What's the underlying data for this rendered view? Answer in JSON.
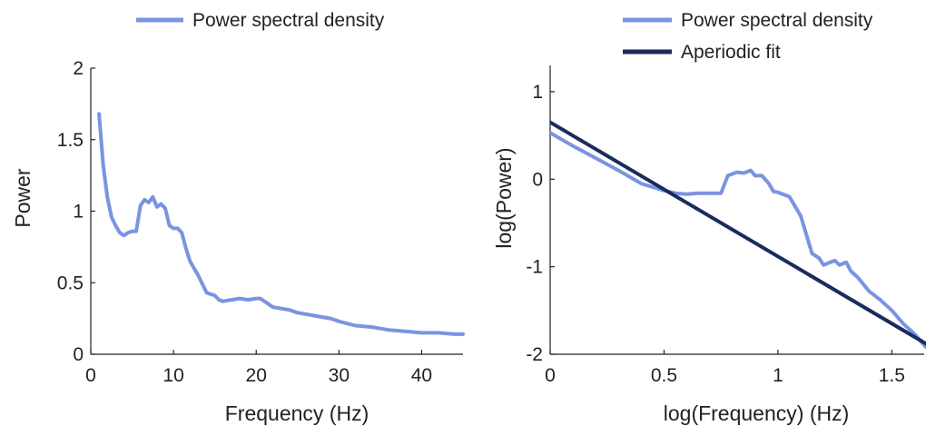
{
  "chart_data": [
    {
      "type": "line",
      "title": "",
      "xlabel": "Frequency (Hz)",
      "ylabel": "Power",
      "xlim": [
        0,
        45
      ],
      "ylim": [
        0,
        2
      ],
      "xticks": [
        0,
        10,
        20,
        30,
        40
      ],
      "xtick_labels": [
        "0",
        "10",
        "20",
        "30",
        "40"
      ],
      "yticks": [
        0,
        0.5,
        1,
        1.5,
        2
      ],
      "ytick_labels": [
        "0",
        "0.5",
        "1",
        "1.5",
        "2"
      ],
      "grid": false,
      "legend": "top",
      "series": [
        {
          "name": "Power spectral density",
          "color": "#7b93e0",
          "x": [
            1,
            1.5,
            2,
            2.5,
            3,
            3.5,
            4,
            4.5,
            5,
            5.5,
            6,
            6.5,
            7,
            7.5,
            8,
            8.5,
            9,
            9.5,
            10,
            10.5,
            11,
            11.5,
            12,
            13,
            14,
            15,
            15.5,
            16,
            17,
            18,
            19,
            20,
            20.5,
            21,
            22,
            23,
            24,
            25,
            26,
            27,
            28,
            29,
            30,
            32,
            34,
            36,
            38,
            40,
            42,
            44,
            45
          ],
          "y": [
            1.68,
            1.32,
            1.1,
            0.96,
            0.9,
            0.85,
            0.83,
            0.85,
            0.86,
            0.86,
            1.04,
            1.08,
            1.06,
            1.1,
            1.03,
            1.05,
            1.02,
            0.9,
            0.88,
            0.88,
            0.85,
            0.74,
            0.65,
            0.55,
            0.43,
            0.41,
            0.38,
            0.37,
            0.38,
            0.39,
            0.38,
            0.39,
            0.39,
            0.37,
            0.33,
            0.32,
            0.31,
            0.29,
            0.28,
            0.27,
            0.26,
            0.25,
            0.23,
            0.2,
            0.19,
            0.17,
            0.16,
            0.15,
            0.15,
            0.14,
            0.14
          ]
        }
      ]
    },
    {
      "type": "line",
      "title": "",
      "xlabel": "log(Frequency) (Hz)",
      "ylabel": "log(Power)",
      "xlim": [
        0,
        1.65
      ],
      "ylim": [
        -2,
        1.3
      ],
      "xticks": [
        0,
        0.5,
        1,
        1.5
      ],
      "xtick_labels": [
        "0",
        "0.5",
        "1",
        "1.5"
      ],
      "yticks": [
        -2,
        -1,
        0,
        1
      ],
      "ytick_labels": [
        "-2",
        "-1",
        "0",
        "1"
      ],
      "grid": false,
      "legend": "top-right",
      "series": [
        {
          "name": "Power spectral density",
          "color": "#7b93e0",
          "x": [
            0,
            0.1,
            0.2,
            0.3,
            0.4,
            0.5,
            0.55,
            0.6,
            0.65,
            0.7,
            0.75,
            0.78,
            0.82,
            0.85,
            0.88,
            0.9,
            0.93,
            0.96,
            0.98,
            1.0,
            1.05,
            1.1,
            1.15,
            1.18,
            1.2,
            1.22,
            1.25,
            1.27,
            1.3,
            1.32,
            1.35,
            1.4,
            1.45,
            1.5,
            1.55,
            1.6,
            1.65
          ],
          "y": [
            0.53,
            0.38,
            0.24,
            0.1,
            -0.05,
            -0.13,
            -0.16,
            -0.17,
            -0.16,
            -0.16,
            -0.16,
            0.04,
            0.08,
            0.07,
            0.1,
            0.04,
            0.04,
            -0.05,
            -0.14,
            -0.15,
            -0.2,
            -0.42,
            -0.85,
            -0.9,
            -0.98,
            -0.96,
            -0.93,
            -0.98,
            -0.95,
            -1.05,
            -1.12,
            -1.28,
            -1.38,
            -1.5,
            -1.65,
            -1.77,
            -1.92
          ]
        },
        {
          "name": "Aperiodic fit",
          "color": "#1a2b5e",
          "x": [
            0,
            1.65
          ],
          "y": [
            0.65,
            -1.88
          ]
        }
      ]
    }
  ]
}
